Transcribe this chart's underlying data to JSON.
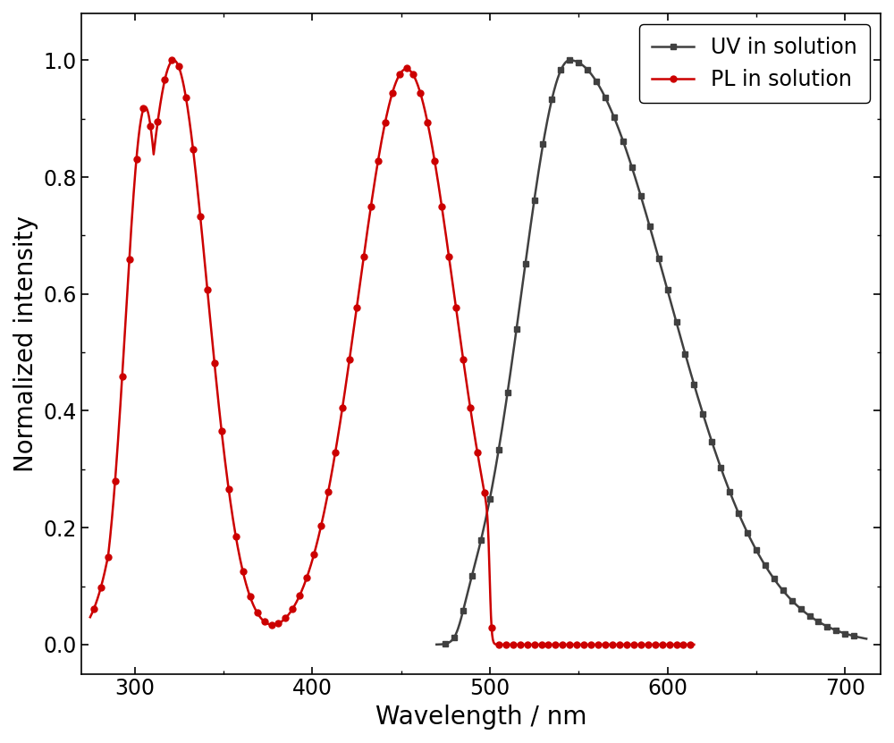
{
  "title": "",
  "xlabel": "Wavelength / nm",
  "ylabel": "Normalized intensity",
  "xlim": [
    270,
    720
  ],
  "ylim": [
    -0.05,
    1.08
  ],
  "xticks": [
    300,
    400,
    500,
    600,
    700
  ],
  "yticks": [
    0.0,
    0.2,
    0.4,
    0.6,
    0.8,
    1.0
  ],
  "uv_color": "#404040",
  "pl_color": "#cc0000",
  "uv_label": "UV in solution",
  "pl_label": "PL in solution",
  "uv_marker": "s",
  "pl_marker": "o",
  "uv_marker_size": 5,
  "pl_marker_size": 5,
  "line_width": 1.8,
  "font_size": 20,
  "legend_fontsize": 17,
  "tick_fontsize": 17,
  "background_color": "#ffffff"
}
